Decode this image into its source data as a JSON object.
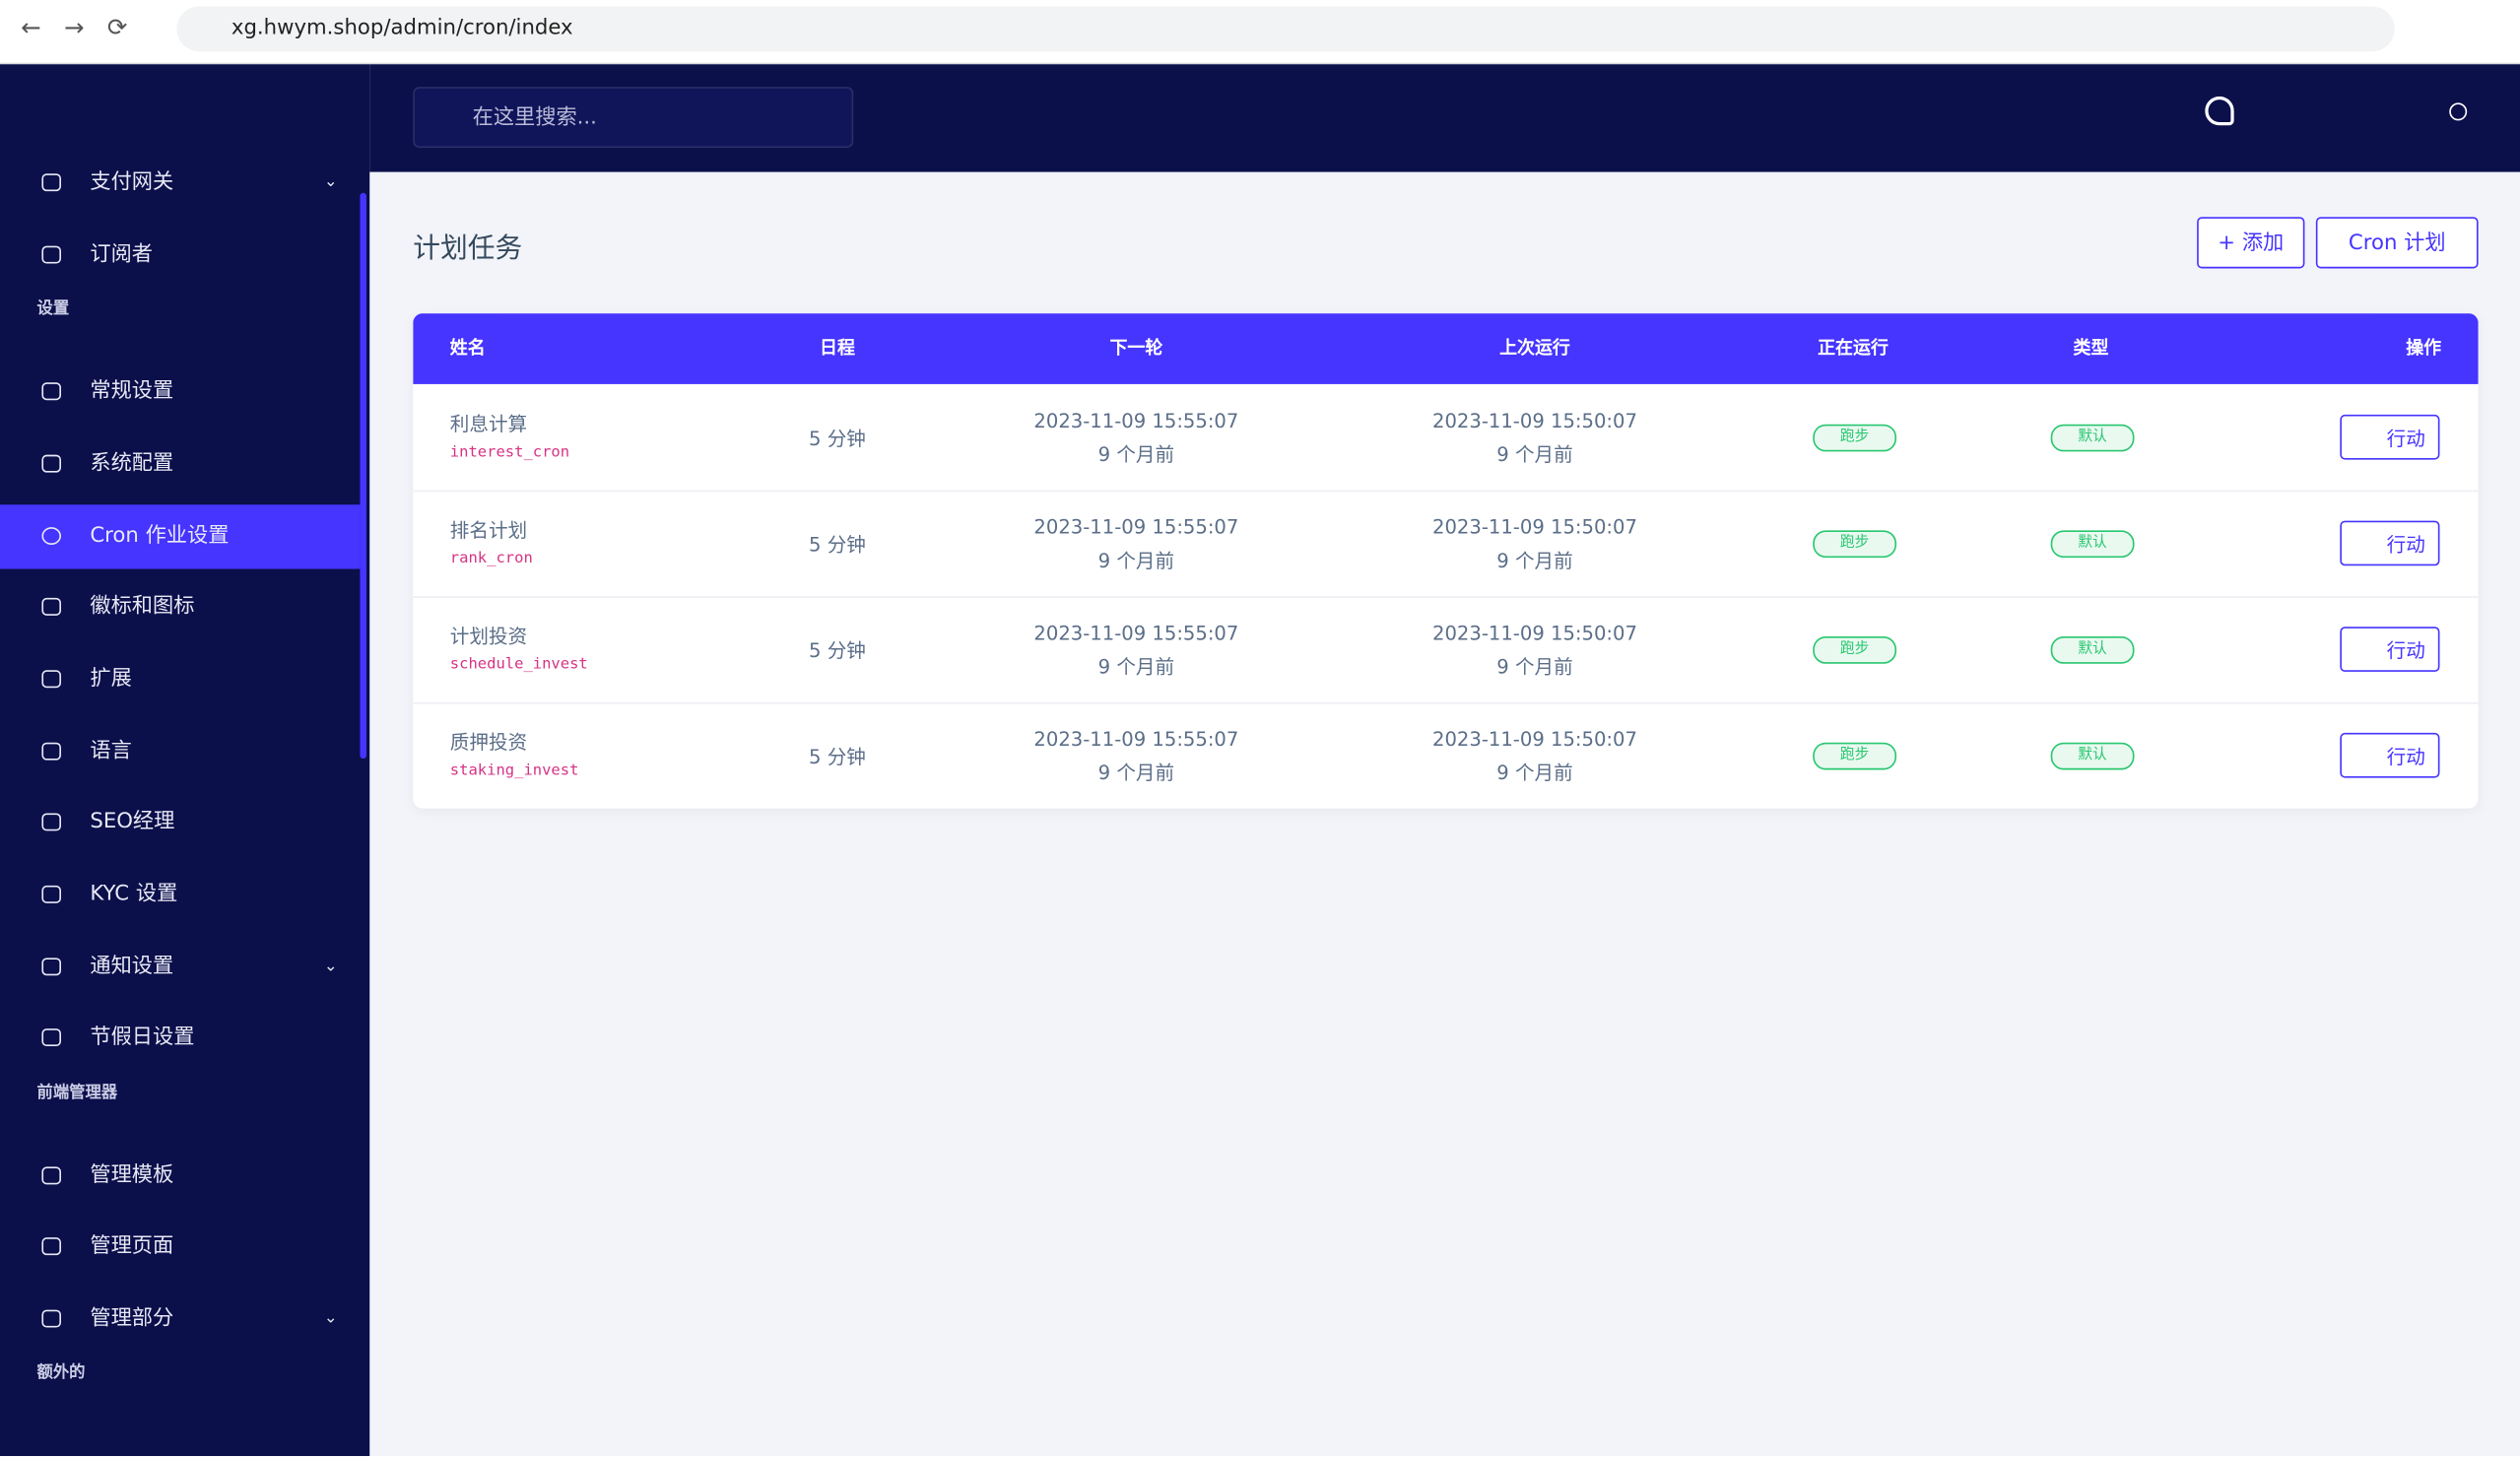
{
  "browser": {
    "url": "xg.hwym.shop/admin/cron/index"
  },
  "topbar": {
    "search_placeholder": "在这里搜索..."
  },
  "sidebar": {
    "items": [
      {
        "label": "支付网关",
        "dropdown": true
      },
      {
        "label": "订阅者"
      },
      {
        "heading": "设置"
      },
      {
        "label": "常规设置"
      },
      {
        "label": "系统配置"
      },
      {
        "label": "Cron 作业设置",
        "active": true
      },
      {
        "label": "徽标和图标"
      },
      {
        "label": "扩展"
      },
      {
        "label": "语言"
      },
      {
        "label": "SEO经理"
      },
      {
        "label": "KYC 设置"
      },
      {
        "label": "通知设置",
        "dropdown": true
      },
      {
        "label": "节假日设置"
      },
      {
        "heading": "前端管理器"
      },
      {
        "label": "管理模板"
      },
      {
        "label": "管理页面"
      },
      {
        "label": "管理部分",
        "dropdown": true
      },
      {
        "heading": "额外的"
      }
    ]
  },
  "page": {
    "title": "计划任务",
    "buttons": [
      "+ 添加",
      "Cron 计划"
    ]
  },
  "table": {
    "headers": [
      "姓名",
      "日程",
      "下一轮",
      "上次运行",
      "正在运行",
      "类型",
      "操作"
    ],
    "rows": [
      {
        "name": "利息计算",
        "code": "interest_cron",
        "schedule": "5 分钟",
        "next": "2023-11-09 15:55:07",
        "next_ago": "9 个月前",
        "last": "2023-11-09 15:50:07",
        "last_ago": "9 个月前",
        "running": "跑步",
        "type": "默认",
        "action": "行动"
      },
      {
        "name": "排名计划",
        "code": "rank_cron",
        "schedule": "5 分钟",
        "next": "2023-11-09 15:55:07",
        "next_ago": "9 个月前",
        "last": "2023-11-09 15:50:07",
        "last_ago": "9 个月前",
        "running": "跑步",
        "type": "默认",
        "action": "行动"
      },
      {
        "name": "计划投资",
        "code": "schedule_invest",
        "schedule": "5 分钟",
        "next": "2023-11-09 15:55:07",
        "next_ago": "9 个月前",
        "last": "2023-11-09 15:50:07",
        "last_ago": "9 个月前",
        "running": "跑步",
        "type": "默认",
        "action": "行动"
      },
      {
        "name": "质押投资",
        "code": "staking_invest",
        "schedule": "5 分钟",
        "next": "2023-11-09 15:55:07",
        "next_ago": "9 个月前",
        "last": "2023-11-09 15:50:07",
        "last_ago": "9 个月前",
        "running": "跑步",
        "type": "默认",
        "action": "行动"
      }
    ]
  }
}
